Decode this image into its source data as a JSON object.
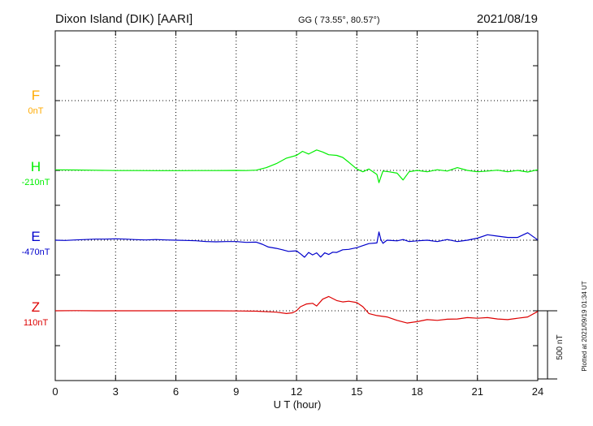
{
  "header": {
    "station": "Dixon Island (DIK)  [AARI]",
    "coords": "GG ( 73.55°,  80.57°)",
    "date": "2021/08/19"
  },
  "footer_note": "Plotted at 2021/09/19 01:34 UT",
  "scale": {
    "label": "500 nT",
    "nT": 500
  },
  "colors": {
    "F": "#ffaa00",
    "H": "#00ee00",
    "E": "#0000cc",
    "Z": "#dd0000",
    "grid": "#000000"
  },
  "chart_data": {
    "type": "line",
    "xlabel": "U T (hour)",
    "xlim": [
      0,
      24
    ],
    "xticks": [
      "0",
      "3",
      "6",
      "9",
      "12",
      "15",
      "18",
      "21",
      "24"
    ],
    "grid": true,
    "series": [
      {
        "name": "F",
        "baseline_label": "0nT",
        "color": "#ffaa00",
        "x": [],
        "y": []
      },
      {
        "name": "H",
        "baseline_label": "-210nT",
        "color": "#00ee00",
        "x": [
          0,
          1,
          2,
          3,
          4,
          5,
          6,
          7,
          8,
          9,
          9.5,
          10,
          10.5,
          11,
          11.5,
          12,
          12.3,
          12.6,
          13,
          13.3,
          13.6,
          14,
          14.3,
          14.6,
          15,
          15.3,
          15.6,
          16,
          16.1,
          16.3,
          16.6,
          17,
          17.3,
          17.6,
          18,
          18.5,
          19,
          19.5,
          20,
          20.5,
          21,
          21.5,
          22,
          22.5,
          23,
          23.5,
          24
        ],
        "y": [
          -206,
          -207,
          -209,
          -211,
          -211,
          -212,
          -212,
          -211,
          -211,
          -210,
          -211,
          -208,
          -190,
          -160,
          -120,
          -100,
          -70,
          -90,
          -60,
          -75,
          -95,
          -100,
          -115,
          -150,
          -200,
          -220,
          -200,
          -240,
          -300,
          -215,
          -220,
          -230,
          -280,
          -220,
          -210,
          -220,
          -205,
          -215,
          -190,
          -210,
          -220,
          -215,
          -208,
          -220,
          -210,
          -222,
          -205
        ]
      },
      {
        "name": "E",
        "baseline_label": "-470nT",
        "color": "#0000cc",
        "x": [
          0,
          0.5,
          1,
          1.5,
          2,
          2.5,
          3,
          3.5,
          4,
          4.5,
          5,
          5.5,
          6,
          6.5,
          7,
          7.5,
          8,
          8.5,
          9,
          9.5,
          10,
          10.3,
          10.6,
          11,
          11.3,
          11.6,
          12,
          12.2,
          12.4,
          12.6,
          12.8,
          13,
          13.2,
          13.4,
          13.6,
          13.8,
          14,
          14.3,
          14.6,
          15,
          15.3,
          15.6,
          16,
          16.1,
          16.2,
          16.3,
          16.5,
          17,
          17.3,
          17.6,
          18,
          18.5,
          19,
          19.5,
          20,
          20.5,
          21,
          21.5,
          22,
          22.5,
          23,
          23.5,
          24
        ],
        "y": [
          -470,
          -472,
          -468,
          -465,
          -462,
          -462,
          -460,
          -462,
          -466,
          -468,
          -465,
          -468,
          -470,
          -472,
          -474,
          -480,
          -482,
          -480,
          -480,
          -486,
          -484,
          -500,
          -520,
          -530,
          -540,
          -552,
          -548,
          -570,
          -595,
          -560,
          -578,
          -563,
          -594,
          -563,
          -575,
          -558,
          -560,
          -540,
          -537,
          -525,
          -510,
          -495,
          -490,
          -410,
          -465,
          -493,
          -470,
          -475,
          -465,
          -480,
          -475,
          -470,
          -480,
          -465,
          -480,
          -470,
          -455,
          -430,
          -440,
          -450,
          -450,
          -415,
          -468
        ]
      },
      {
        "name": "Z",
        "baseline_label": "110nT",
        "color": "#dd0000",
        "x": [
          0,
          1,
          2,
          3,
          4,
          5,
          6,
          7,
          8,
          9,
          10,
          11,
          11.5,
          11.8,
          12,
          12.2,
          12.5,
          12.8,
          13,
          13.3,
          13.6,
          14,
          14.3,
          14.6,
          15,
          15.3,
          15.6,
          16,
          16.5,
          17,
          17.5,
          18,
          18.5,
          19,
          19.5,
          20,
          20.5,
          21,
          21.5,
          22,
          22.5,
          23,
          23.5,
          24
        ],
        "y": [
          110,
          111,
          110,
          110,
          110,
          110,
          110,
          110,
          110,
          109,
          107,
          100,
          90,
          95,
          110,
          140,
          160,
          165,
          145,
          195,
          215,
          185,
          175,
          180,
          170,
          140,
          90,
          75,
          65,
          40,
          20,
          30,
          45,
          40,
          48,
          50,
          60,
          55,
          60,
          50,
          45,
          55,
          65,
          105
        ]
      }
    ]
  }
}
